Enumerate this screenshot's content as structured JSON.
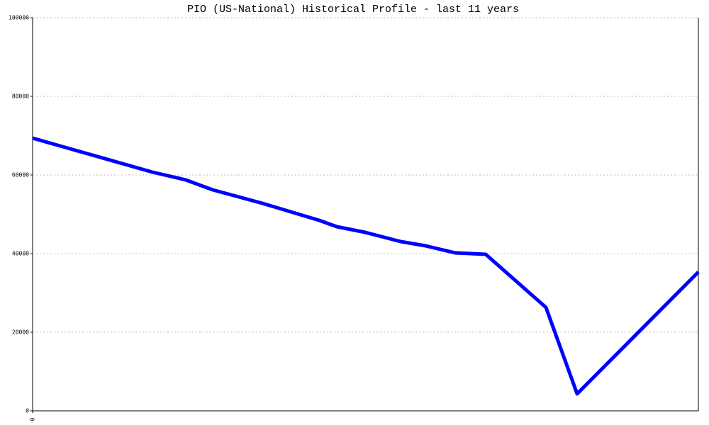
{
  "chart_data": {
    "type": "line",
    "title": "PIO (US-National) Historical Profile - last 11 years",
    "x": [
      0,
      169,
      216,
      254,
      324,
      404,
      429,
      469,
      519,
      554,
      596,
      639,
      724,
      768,
      939
    ],
    "series": [
      {
        "color": "#0000ff",
        "values": [
          69369,
          60721,
          58739,
          56216,
          52793,
          48468,
          46847,
          45405,
          43063,
          41982,
          40180,
          39820,
          26306,
          4324,
          35315
        ]
      }
    ],
    "xlim": [
      0,
      939
    ],
    "xticks": [
      0
    ],
    "ylim": [
      0,
      100000
    ],
    "yticks": [
      0,
      20000,
      40000,
      60000,
      80000,
      100000
    ],
    "grid": true
  }
}
